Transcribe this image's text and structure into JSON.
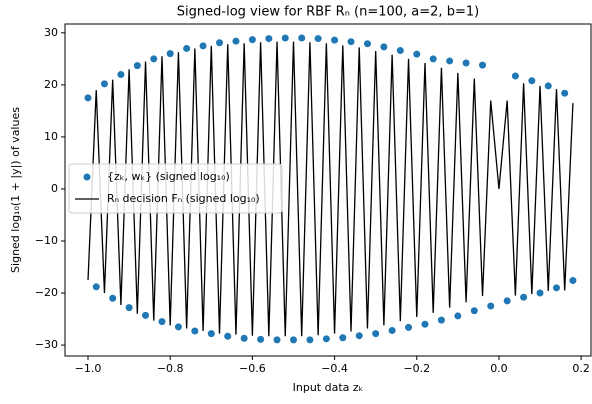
{
  "chart_data": {
    "type": "scatter",
    "title": "Signed-log view for RBF Rₙ (n=100, a=2, b=1)",
    "x_label": "Input data zₖ",
    "y_label": "Signed log₁₀(1 + |y|) of values",
    "xlim": [
      -1.056,
      0.224
    ],
    "ylim": [
      -32.1,
      31.7
    ],
    "xticks": [
      {
        "value": -1.0,
        "label": "−1.0"
      },
      {
        "value": -0.8,
        "label": "−0.8"
      },
      {
        "value": -0.6,
        "label": "−0.6"
      },
      {
        "value": -0.4,
        "label": "−0.4"
      },
      {
        "value": -0.2,
        "label": "−0.2"
      },
      {
        "value": 0.0,
        "label": "0.0"
      },
      {
        "value": 0.2,
        "label": "0.2"
      }
    ],
    "yticks": [
      {
        "value": -30,
        "label": "−30"
      },
      {
        "value": -20,
        "label": "−20"
      },
      {
        "value": -10,
        "label": "−10"
      },
      0,
      10,
      20,
      30
    ],
    "legend": "center left",
    "series": [
      {
        "name": "{zₖ, wₖ} (signed log₁₀)",
        "type": "scatter",
        "color": "#1f77b4",
        "x": [
          -1.0,
          -0.98,
          -0.96,
          -0.94,
          -0.92,
          -0.9,
          -0.88,
          -0.86,
          -0.84,
          -0.82,
          -0.8,
          -0.78,
          -0.76,
          -0.74,
          -0.72,
          -0.7,
          -0.68,
          -0.66,
          -0.64,
          -0.62,
          -0.6,
          -0.58,
          -0.56,
          -0.54,
          -0.52,
          -0.5,
          -0.48,
          -0.46,
          -0.44,
          -0.42,
          -0.4,
          -0.38,
          -0.36,
          -0.34,
          -0.32,
          -0.3,
          -0.28,
          -0.26,
          -0.24,
          -0.22,
          -0.2,
          -0.18,
          -0.16,
          -0.14,
          -0.12,
          -0.1,
          -0.08,
          -0.06,
          -0.04,
          -0.02,
          0.02,
          0.04,
          0.06,
          0.08,
          0.1,
          0.12,
          0.14,
          0.16,
          0.18
        ],
        "values": [
          17.5,
          -18.8,
          20.2,
          -21,
          22,
          -22.8,
          23.7,
          -24.3,
          25,
          -25.5,
          26,
          -26.5,
          27,
          -27.3,
          27.5,
          -27.8,
          28.1,
          -28.3,
          28.4,
          -28.7,
          28.7,
          -28.9,
          28.9,
          -29,
          29,
          -29,
          29,
          -29,
          28.9,
          -28.8,
          28.6,
          -28.6,
          28.3,
          -28.2,
          27.9,
          -27.8,
          27.3,
          -27.2,
          26.6,
          -26.6,
          25.9,
          -26,
          25,
          -25.2,
          24.6,
          -24.4,
          24.2,
          -23.4,
          23.8,
          -22.5,
          -21.5,
          21.7,
          -20.8,
          20.8,
          -20,
          19.8,
          -19,
          18.4,
          -17.6
        ]
      },
      {
        "name": "Rₙ decision Fₙ (signed log₁₀)",
        "type": "line",
        "color": "#000000",
        "x": [
          -1.0,
          -0.98,
          -0.96,
          -0.94,
          -0.92,
          -0.9,
          -0.88,
          -0.86,
          -0.84,
          -0.82,
          -0.8,
          -0.78,
          -0.76,
          -0.74,
          -0.72,
          -0.7,
          -0.68,
          -0.66,
          -0.64,
          -0.62,
          -0.6,
          -0.58,
          -0.56,
          -0.54,
          -0.52,
          -0.5,
          -0.48,
          -0.46,
          -0.44,
          -0.42,
          -0.4,
          -0.38,
          -0.36,
          -0.34,
          -0.32,
          -0.3,
          -0.28,
          -0.26,
          -0.24,
          -0.22,
          -0.2,
          -0.18,
          -0.16,
          -0.14,
          -0.12,
          -0.1,
          -0.08,
          -0.06,
          -0.04,
          -0.02,
          0.0,
          0.02,
          0.04,
          0.06,
          0.08,
          0.1,
          0.12,
          0.14,
          0.16,
          0.18
        ],
        "values": [
          -17.5,
          19,
          -20,
          21,
          -22.3,
          23,
          -24,
          24.5,
          -25.3,
          25.5,
          -26.2,
          26.3,
          -26.8,
          27,
          -27.3,
          27.5,
          -27.8,
          27.8,
          -28,
          28,
          -28.2,
          28.2,
          -28.3,
          28.3,
          -28.3,
          28.3,
          -28.3,
          28.2,
          -28.1,
          28,
          -27.8,
          27.6,
          -27.4,
          27.2,
          -26.8,
          26.5,
          -26.2,
          25.8,
          -25.4,
          25,
          -24.6,
          24.2,
          -23.8,
          23.3,
          -22.8,
          22.3,
          -21.8,
          21.2,
          -20.6,
          17,
          0,
          17,
          -20.5,
          20.3,
          -20.2,
          19.8,
          -19.6,
          19.2,
          -19.5,
          16.5
        ]
      }
    ]
  }
}
